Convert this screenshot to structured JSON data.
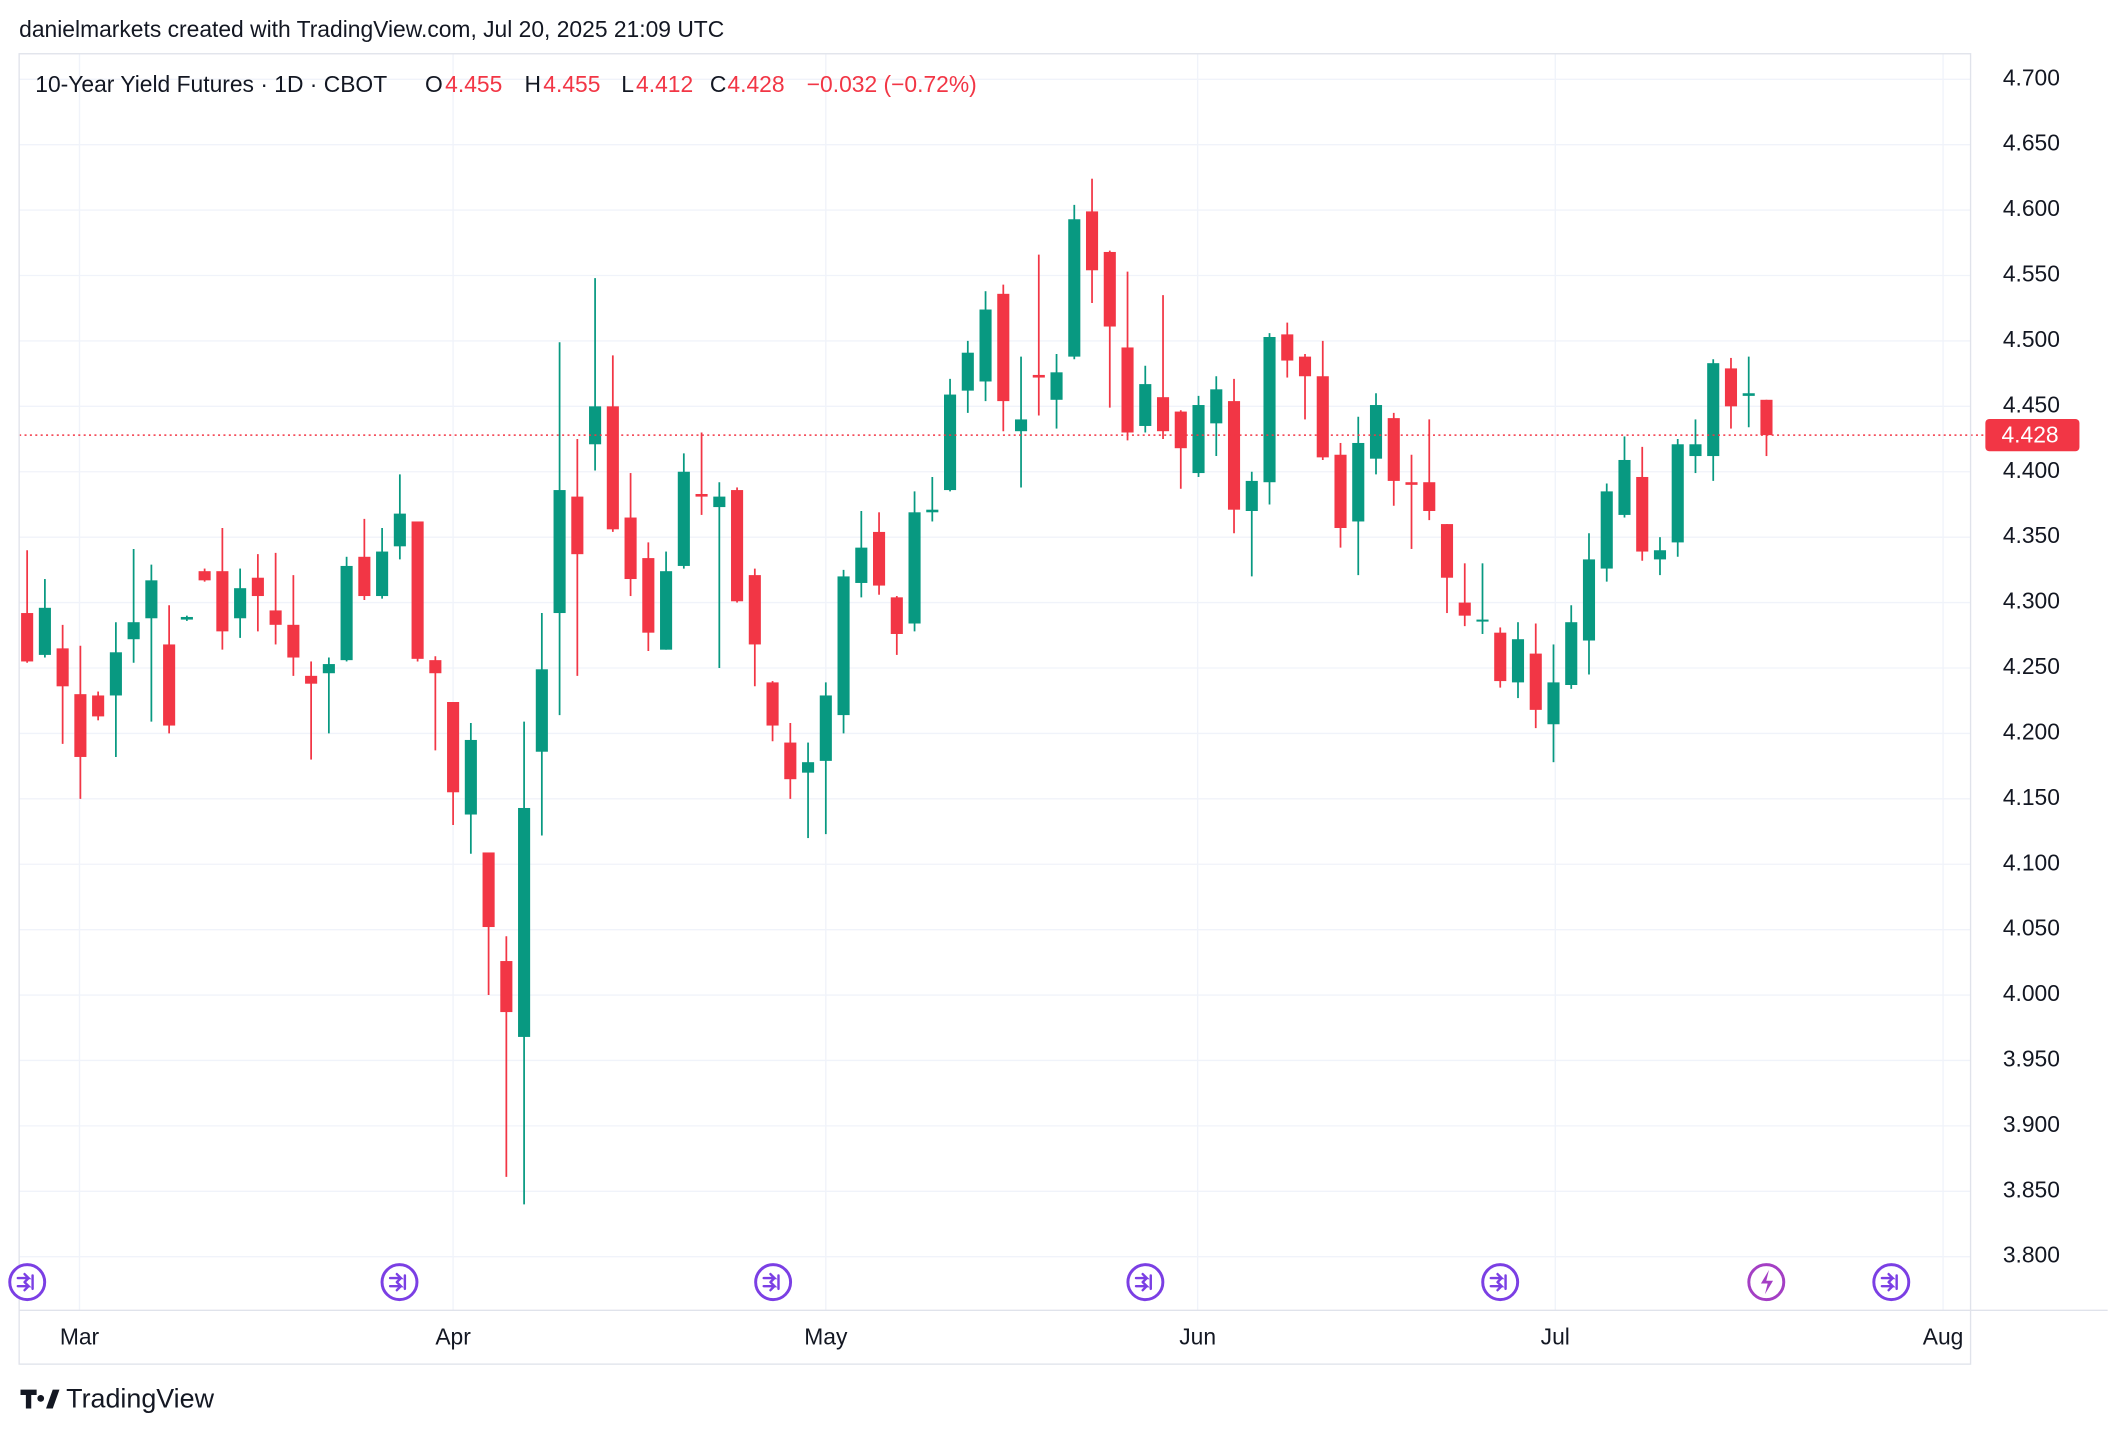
{
  "header": {
    "credit": "danielmarkets created with TradingView.com, Jul 20, 2025 21:09 UTC"
  },
  "footer": {
    "brand": "TradingView"
  },
  "chart_data": {
    "type": "candlestick",
    "title": "10-Year Yield Futures · 1D · CBOT",
    "ohlc_labels": [
      "O",
      "H",
      "L",
      "C"
    ],
    "change_label": "−0.032 (−0.72%)",
    "up_color": "#089981",
    "down_color": "#f23645",
    "open": [
      4.292,
      4.26,
      4.265,
      4.23,
      4.229,
      4.229,
      4.272,
      4.288,
      4.268,
      4.287,
      4.324,
      4.324,
      4.288,
      4.319,
      4.294,
      4.283,
      4.244,
      4.246,
      4.256,
      4.335,
      4.305,
      4.343,
      4.362,
      4.256,
      4.224,
      4.138,
      4.109,
      4.026,
      3.968,
      4.186,
      4.292,
      4.381,
      4.421,
      4.45,
      4.365,
      4.334,
      4.264,
      4.328,
      4.383,
      4.373,
      4.386,
      4.321,
      4.239,
      4.193,
      4.17,
      4.179,
      4.214,
      4.315,
      4.354,
      4.304,
      4.284,
      4.369,
      4.386,
      4.462,
      4.469,
      4.536,
      4.431,
      4.474,
      4.455,
      4.488,
      4.599,
      4.568,
      4.495,
      4.435,
      4.457,
      4.446,
      4.399,
      4.437,
      4.454,
      4.37,
      4.392,
      4.505,
      4.488,
      4.473,
      4.413,
      4.362,
      4.41,
      4.441,
      4.392,
      4.392,
      4.36,
      4.3,
      4.286,
      4.277,
      4.239,
      4.261,
      4.207,
      4.237,
      4.271,
      4.326,
      4.367,
      4.396,
      4.333,
      4.346,
      4.412,
      4.412,
      4.479,
      4.458,
      4.455
    ],
    "high": [
      4.34,
      4.318,
      4.283,
      4.267,
      4.232,
      4.285,
      4.341,
      4.329,
      4.298,
      4.29,
      4.326,
      4.357,
      4.326,
      4.337,
      4.338,
      4.321,
      4.255,
      4.258,
      4.335,
      4.364,
      4.357,
      4.398,
      4.362,
      4.259,
      4.224,
      4.208,
      4.109,
      4.045,
      4.209,
      4.292,
      4.499,
      4.425,
      4.548,
      4.489,
      4.399,
      4.346,
      4.339,
      4.414,
      4.43,
      4.392,
      4.388,
      4.326,
      4.24,
      4.208,
      4.193,
      4.239,
      4.325,
      4.37,
      4.369,
      4.305,
      4.385,
      4.396,
      4.471,
      4.5,
      4.538,
      4.543,
      4.488,
      4.566,
      4.49,
      4.604,
      4.624,
      4.569,
      4.553,
      4.481,
      4.535,
      4.447,
      4.458,
      4.473,
      4.471,
      4.4,
      4.506,
      4.514,
      4.49,
      4.5,
      4.422,
      4.442,
      4.46,
      4.445,
      4.413,
      4.44,
      4.36,
      4.33,
      4.33,
      4.281,
      4.285,
      4.284,
      4.268,
      4.298,
      4.353,
      4.391,
      4.427,
      4.419,
      4.35,
      4.425,
      4.44,
      4.486,
      4.487,
      4.488,
      4.455
    ],
    "low": [
      4.254,
      4.258,
      4.192,
      4.15,
      4.21,
      4.182,
      4.254,
      4.209,
      4.2,
      4.286,
      4.316,
      4.264,
      4.273,
      4.278,
      4.268,
      4.244,
      4.18,
      4.2,
      4.255,
      4.302,
      4.303,
      4.333,
      4.255,
      4.187,
      4.13,
      4.108,
      4.0,
      3.861,
      3.84,
      4.122,
      4.214,
      4.244,
      4.401,
      4.354,
      4.305,
      4.263,
      4.264,
      4.326,
      4.367,
      4.25,
      4.3,
      4.236,
      4.194,
      4.15,
      4.12,
      4.123,
      4.2,
      4.304,
      4.306,
      4.26,
      4.278,
      4.362,
      4.385,
      4.445,
      4.454,
      4.431,
      4.388,
      4.443,
      4.433,
      4.486,
      4.529,
      4.449,
      4.424,
      4.43,
      4.425,
      4.387,
      4.396,
      4.412,
      4.353,
      4.32,
      4.375,
      4.472,
      4.44,
      4.409,
      4.342,
      4.321,
      4.398,
      4.374,
      4.341,
      4.363,
      4.292,
      4.282,
      4.276,
      4.235,
      4.227,
      4.204,
      4.178,
      4.234,
      4.245,
      4.316,
      4.365,
      4.332,
      4.321,
      4.335,
      4.399,
      4.393,
      4.433,
      4.434,
      4.412
    ],
    "close": [
      4.255,
      4.296,
      4.236,
      4.182,
      4.213,
      4.262,
      4.285,
      4.317,
      4.206,
      4.289,
      4.317,
      4.278,
      4.311,
      4.305,
      4.283,
      4.258,
      4.238,
      4.253,
      4.328,
      4.305,
      4.339,
      4.368,
      4.257,
      4.246,
      4.155,
      4.195,
      4.052,
      3.987,
      4.143,
      4.249,
      4.386,
      4.337,
      4.45,
      4.356,
      4.318,
      4.277,
      4.324,
      4.4,
      4.381,
      4.381,
      4.301,
      4.268,
      4.206,
      4.165,
      4.178,
      4.229,
      4.32,
      4.342,
      4.313,
      4.276,
      4.369,
      4.371,
      4.459,
      4.491,
      4.524,
      4.454,
      4.44,
      4.472,
      4.476,
      4.593,
      4.554,
      4.511,
      4.43,
      4.467,
      4.431,
      4.418,
      4.451,
      4.463,
      4.371,
      4.393,
      4.503,
      4.485,
      4.473,
      4.411,
      4.357,
      4.422,
      4.451,
      4.393,
      4.39,
      4.37,
      4.319,
      4.29,
      4.287,
      4.24,
      4.272,
      4.218,
      4.239,
      4.285,
      4.333,
      4.385,
      4.409,
      4.339,
      4.34,
      4.421,
      4.421,
      4.483,
      4.45,
      4.46,
      4.428
    ],
    "xlim": [
      -0.45,
      109.5
    ],
    "xticks": [
      {
        "value": 2.95,
        "label": "Mar"
      },
      {
        "value": 24,
        "label": "Apr"
      },
      {
        "value": 45,
        "label": "May"
      },
      {
        "value": 65.95,
        "label": "Jun"
      },
      {
        "value": 86.1,
        "label": "Jul"
      },
      {
        "value": 107.95,
        "label": "Aug"
      }
    ],
    "ylim": [
      3.759,
      4.7195
    ],
    "yticks": [
      {
        "value": 3.8,
        "label": "3.800"
      },
      {
        "value": 3.85,
        "label": "3.850"
      },
      {
        "value": 3.9,
        "label": "3.900"
      },
      {
        "value": 3.95,
        "label": "3.950"
      },
      {
        "value": 4.0,
        "label": "4.000"
      },
      {
        "value": 4.05,
        "label": "4.050"
      },
      {
        "value": 4.1,
        "label": "4.100"
      },
      {
        "value": 4.15,
        "label": "4.150"
      },
      {
        "value": 4.2,
        "label": "4.200"
      },
      {
        "value": 4.25,
        "label": "4.250"
      },
      {
        "value": 4.3,
        "label": "4.300"
      },
      {
        "value": 4.35,
        "label": "4.350"
      },
      {
        "value": 4.4,
        "label": "4.400"
      },
      {
        "value": 4.45,
        "label": "4.450"
      },
      {
        "value": 4.5,
        "label": "4.500"
      },
      {
        "value": 4.55,
        "label": "4.550"
      },
      {
        "value": 4.6,
        "label": "4.600"
      },
      {
        "value": 4.65,
        "label": "4.650"
      },
      {
        "value": 4.7,
        "label": "4.700"
      }
    ],
    "grid": true
  }
}
